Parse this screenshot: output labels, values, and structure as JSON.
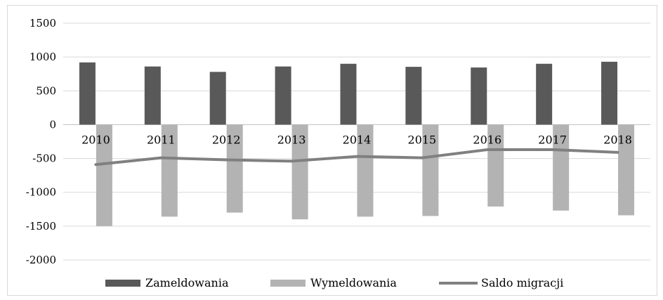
{
  "chart_data": {
    "type": "bar",
    "title": "",
    "xlabel": "",
    "ylabel": "",
    "categories": [
      "2010",
      "2011",
      "2012",
      "2013",
      "2014",
      "2015",
      "2016",
      "2017",
      "2018"
    ],
    "ylim": [
      -2000,
      1500
    ],
    "yticks": [
      "1500",
      "1000",
      "500",
      "0",
      "-500",
      "-1000",
      "-1500",
      "-2000"
    ],
    "grid": true,
    "legend_position": "bottom",
    "series": [
      {
        "name": "Zameldowania",
        "kind": "bar",
        "color": "#595959",
        "values": [
          920,
          860,
          780,
          860,
          900,
          855,
          845,
          900,
          930
        ]
      },
      {
        "name": "Wymeldowania",
        "kind": "bar",
        "color": "#b3b3b3",
        "values": [
          -1500,
          -1360,
          -1300,
          -1400,
          -1360,
          -1350,
          -1210,
          -1270,
          -1340
        ]
      },
      {
        "name": "Saldo migracji",
        "kind": "line",
        "color": "#808080",
        "values": [
          -590,
          -490,
          -520,
          -540,
          -470,
          -490,
          -370,
          -370,
          -410
        ]
      }
    ]
  }
}
